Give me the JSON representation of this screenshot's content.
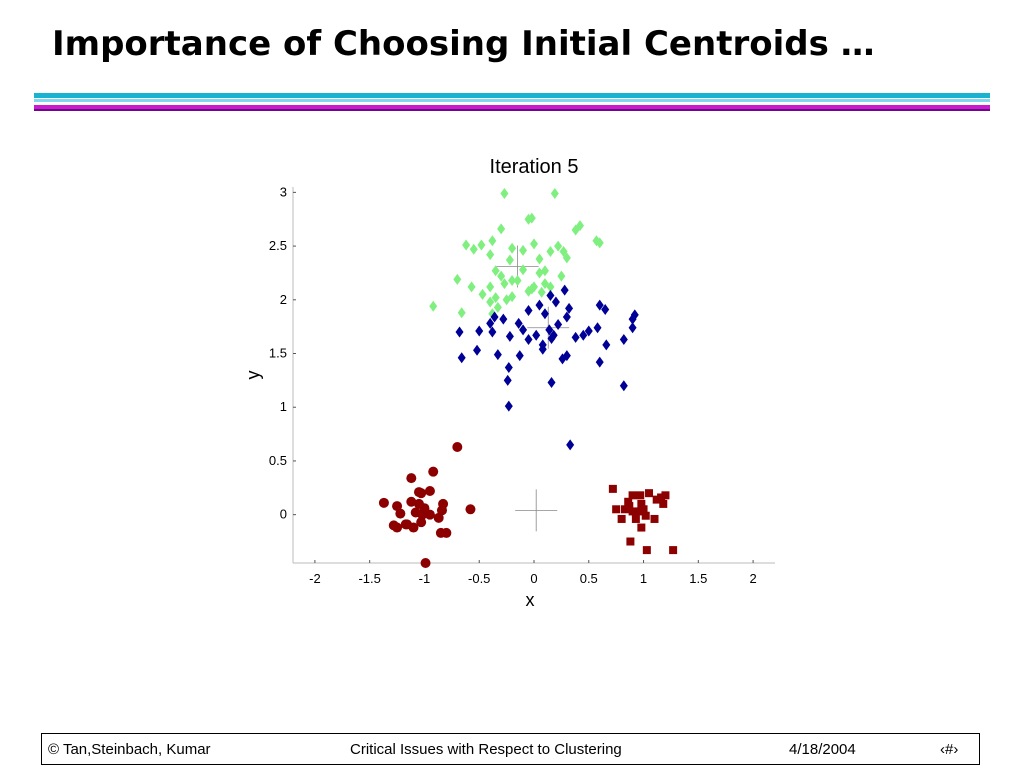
{
  "slide": {
    "title": "Importance of Choosing Initial Centroids …"
  },
  "footer": {
    "left": "© Tan,Steinbach, Kumar",
    "center": "Critical Issues with Respect to Clustering",
    "date": "4/18/2004",
    "page": "‹#›"
  },
  "chart_data": {
    "type": "scatter",
    "title": "Iteration 5",
    "xlabel": "x",
    "ylabel": "y",
    "xlim": [
      -2.2,
      2.2
    ],
    "ylim": [
      -0.45,
      3.05
    ],
    "xticks": [
      "-2",
      "-1.5",
      "-1",
      "-0.5",
      "0",
      "0.5",
      "1",
      "1.5",
      "2"
    ],
    "yticks": [
      "0",
      "0.5",
      "1",
      "1.5",
      "2",
      "2.5",
      "3"
    ],
    "grid": false,
    "legend": "none",
    "series": [
      {
        "marker": "diamond",
        "color": "#7ff07f",
        "points": [
          [
            -0.27,
            2.99
          ],
          [
            0.19,
            2.99
          ],
          [
            -0.05,
            2.75
          ],
          [
            -0.02,
            2.76
          ],
          [
            -0.3,
            2.66
          ],
          [
            0.38,
            2.65
          ],
          [
            0.42,
            2.69
          ],
          [
            0.57,
            2.55
          ],
          [
            0.6,
            2.53
          ],
          [
            -0.62,
            2.51
          ],
          [
            -0.48,
            2.51
          ],
          [
            -0.38,
            2.55
          ],
          [
            -0.2,
            2.48
          ],
          [
            -0.1,
            2.46
          ],
          [
            0.0,
            2.52
          ],
          [
            0.15,
            2.45
          ],
          [
            0.22,
            2.5
          ],
          [
            0.27,
            2.45
          ],
          [
            -0.55,
            2.47
          ],
          [
            -0.4,
            2.42
          ],
          [
            0.05,
            2.38
          ],
          [
            0.3,
            2.39
          ],
          [
            -0.22,
            2.37
          ],
          [
            -0.35,
            2.27
          ],
          [
            -0.1,
            2.28
          ],
          [
            0.1,
            2.27
          ],
          [
            -0.3,
            2.22
          ],
          [
            -0.2,
            2.18
          ],
          [
            0.05,
            2.25
          ],
          [
            0.25,
            2.22
          ],
          [
            -0.7,
            2.19
          ],
          [
            -0.57,
            2.12
          ],
          [
            -0.4,
            2.12
          ],
          [
            -0.15,
            2.18
          ],
          [
            0.0,
            2.12
          ],
          [
            0.1,
            2.15
          ],
          [
            -0.47,
            2.05
          ],
          [
            -0.35,
            2.02
          ],
          [
            -0.2,
            2.03
          ],
          [
            -0.05,
            2.08
          ],
          [
            -0.02,
            2.1
          ],
          [
            0.15,
            2.12
          ],
          [
            -0.4,
            1.98
          ],
          [
            -0.33,
            1.93
          ],
          [
            -0.25,
            2.0
          ],
          [
            -0.92,
            1.94
          ],
          [
            -0.66,
            1.88
          ],
          [
            -0.38,
            1.87
          ],
          [
            0.07,
            2.07
          ],
          [
            -0.27,
            2.15
          ]
        ]
      },
      {
        "marker": "diamond",
        "color": "#000096",
        "points": [
          [
            0.15,
            2.04
          ],
          [
            0.28,
            2.09
          ],
          [
            0.2,
            1.98
          ],
          [
            0.32,
            1.92
          ],
          [
            0.05,
            1.95
          ],
          [
            -0.05,
            1.9
          ],
          [
            0.1,
            1.87
          ],
          [
            0.6,
            1.95
          ],
          [
            0.65,
            1.91
          ],
          [
            0.9,
            1.82
          ],
          [
            0.92,
            1.86
          ],
          [
            0.3,
            1.84
          ],
          [
            -0.36,
            1.84
          ],
          [
            -0.28,
            1.82
          ],
          [
            -0.4,
            1.78
          ],
          [
            -0.14,
            1.78
          ],
          [
            0.22,
            1.77
          ],
          [
            0.58,
            1.74
          ],
          [
            0.9,
            1.74
          ],
          [
            -0.68,
            1.7
          ],
          [
            -0.5,
            1.71
          ],
          [
            -0.38,
            1.7
          ],
          [
            -0.22,
            1.66
          ],
          [
            -0.1,
            1.72
          ],
          [
            0.02,
            1.67
          ],
          [
            0.14,
            1.72
          ],
          [
            0.18,
            1.67
          ],
          [
            0.38,
            1.65
          ],
          [
            0.45,
            1.67
          ],
          [
            0.5,
            1.71
          ],
          [
            0.82,
            1.63
          ],
          [
            -0.05,
            1.63
          ],
          [
            0.08,
            1.58
          ],
          [
            0.16,
            1.64
          ],
          [
            -0.66,
            1.46
          ],
          [
            -0.52,
            1.53
          ],
          [
            -0.33,
            1.49
          ],
          [
            -0.13,
            1.48
          ],
          [
            0.08,
            1.54
          ],
          [
            0.26,
            1.45
          ],
          [
            0.3,
            1.48
          ],
          [
            0.66,
            1.58
          ],
          [
            0.6,
            1.42
          ],
          [
            -0.23,
            1.37
          ],
          [
            -0.24,
            1.25
          ],
          [
            0.16,
            1.23
          ],
          [
            0.82,
            1.2
          ],
          [
            -0.23,
            1.01
          ],
          [
            0.33,
            0.65
          ]
        ]
      },
      {
        "marker": "circle",
        "color": "#8c0000",
        "points": [
          [
            -0.7,
            0.63
          ],
          [
            -0.92,
            0.4
          ],
          [
            -1.12,
            0.34
          ],
          [
            -1.05,
            0.21
          ],
          [
            -0.95,
            0.22
          ],
          [
            -1.03,
            0.2
          ],
          [
            -1.37,
            0.11
          ],
          [
            -1.25,
            0.08
          ],
          [
            -1.12,
            0.12
          ],
          [
            -1.05,
            0.1
          ],
          [
            -0.83,
            0.1
          ],
          [
            -1.0,
            0.06
          ],
          [
            -1.08,
            0.02
          ],
          [
            -0.84,
            0.04
          ],
          [
            -0.58,
            0.05
          ],
          [
            -1.22,
            0.01
          ],
          [
            -1.02,
            0.0
          ],
          [
            -0.95,
            0.0
          ],
          [
            -0.87,
            -0.03
          ],
          [
            -1.28,
            -0.1
          ],
          [
            -1.17,
            -0.09
          ],
          [
            -1.1,
            -0.12
          ],
          [
            -1.03,
            -0.07
          ],
          [
            -0.85,
            -0.17
          ],
          [
            -0.8,
            -0.17
          ],
          [
            -1.25,
            -0.12
          ],
          [
            -1.16,
            -0.09
          ],
          [
            -0.99,
            -0.45
          ]
        ]
      },
      {
        "marker": "square",
        "color": "#8c0000",
        "points": [
          [
            0.72,
            0.24
          ],
          [
            1.05,
            0.2
          ],
          [
            0.9,
            0.18
          ],
          [
            0.97,
            0.18
          ],
          [
            1.2,
            0.18
          ],
          [
            0.86,
            0.12
          ],
          [
            0.98,
            0.1
          ],
          [
            1.12,
            0.14
          ],
          [
            1.18,
            0.1
          ],
          [
            0.75,
            0.05
          ],
          [
            0.83,
            0.05
          ],
          [
            0.9,
            0.03
          ],
          [
            0.96,
            0.03
          ],
          [
            1.0,
            0.05
          ],
          [
            0.8,
            -0.04
          ],
          [
            0.93,
            -0.04
          ],
          [
            1.02,
            -0.01
          ],
          [
            1.1,
            -0.04
          ],
          [
            0.98,
            -0.12
          ],
          [
            0.88,
            -0.25
          ],
          [
            1.03,
            -0.33
          ],
          [
            1.27,
            -0.33
          ],
          [
            1.16,
            0.16
          ],
          [
            0.87,
            0.08
          ]
        ]
      }
    ],
    "centroids": [
      [
        -0.15,
        2.31
      ],
      [
        0.13,
        1.74
      ],
      [
        0.02,
        0.04
      ]
    ]
  }
}
